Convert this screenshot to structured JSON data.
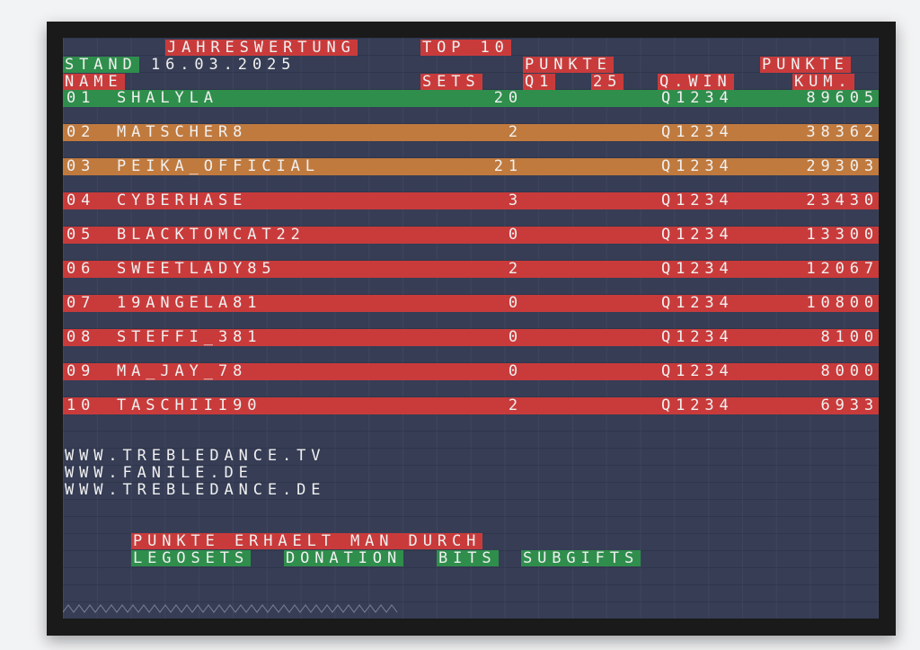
{
  "header": {
    "title": "JAHRESWERTUNG",
    "subtitle": "TOP 10",
    "stand_label": "STAND",
    "date": "16.03.2025",
    "punkte_q1_label": "PUNKTE",
    "q1_label": "Q1",
    "q1_value": "25",
    "punkte_kum_label": "PUNKTE",
    "kum_label": "KUM.",
    "col_name": "NAME",
    "col_sets": "SETS",
    "col_qwin": "Q.WIN"
  },
  "rows": [
    {
      "rank": "01",
      "name": "SHALYLA",
      "sets": "20",
      "qwin": "Q1234",
      "kum": "89605",
      "color": "#2f8e4c"
    },
    {
      "rank": "02",
      "name": "MATSCHER8",
      "sets": "2",
      "qwin": "Q1234",
      "kum": "38362",
      "color": "#c07a3e"
    },
    {
      "rank": "03",
      "name": "PEIKA_OFFICIAL",
      "sets": "21",
      "qwin": "Q1234",
      "kum": "29303",
      "color": "#c07a3e"
    },
    {
      "rank": "04",
      "name": "CYBERHASE",
      "sets": "3",
      "qwin": "Q1234",
      "kum": "23430",
      "color": "#c93b3b"
    },
    {
      "rank": "05",
      "name": "BLACKTOMCAT22",
      "sets": "0",
      "qwin": "Q1234",
      "kum": "13300",
      "color": "#c93b3b"
    },
    {
      "rank": "06",
      "name": "SWEETLADY85",
      "sets": "2",
      "qwin": "Q1234",
      "kum": "12067",
      "color": "#c93b3b"
    },
    {
      "rank": "07",
      "name": "19ANGELA81",
      "sets": "0",
      "qwin": "Q1234",
      "kum": "10800",
      "color": "#c93b3b"
    },
    {
      "rank": "08",
      "name": "STEFFI_381",
      "sets": "0",
      "qwin": "Q1234",
      "kum": "8100",
      "color": "#c93b3b"
    },
    {
      "rank": "09",
      "name": "MA_JAY_78",
      "sets": "0",
      "qwin": "Q1234",
      "kum": "8000",
      "color": "#c93b3b"
    },
    {
      "rank": "10",
      "name": "TASCHIII90",
      "sets": "2",
      "qwin": "Q1234",
      "kum": "6933",
      "color": "#c93b3b"
    }
  ],
  "links": [
    "WWW.TREBLEDANCE.TV",
    "WWW.FANILE.DE",
    "WWW.TREBLEDANCE.DE"
  ],
  "footer": {
    "points_text": "PUNKTE ERHAELT MAN DURCH",
    "sources": [
      "LEGOSETS",
      "DONATION",
      "BITS",
      "SUBGIFTS"
    ]
  },
  "colors": {
    "board": "#363d55",
    "red": "#c93b3b",
    "green": "#2f8e4c",
    "orange": "#c07a3e"
  }
}
